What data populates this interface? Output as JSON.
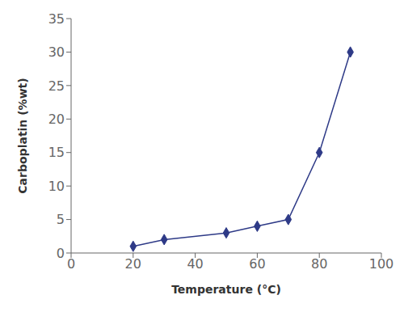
{
  "chart_data": {
    "type": "line",
    "x": [
      20,
      30,
      50,
      60,
      70,
      80,
      90
    ],
    "values": [
      1,
      2,
      3,
      4,
      5,
      15,
      30
    ],
    "color": "#2E3A87",
    "marker": "diamond",
    "xlabel": "Temperature (°C)",
    "ylabel": "Carboplatin (%wt)",
    "xlim": [
      0,
      100
    ],
    "ylim": [
      0,
      35
    ],
    "xticks": [
      0,
      20,
      40,
      60,
      80,
      100
    ],
    "yticks": [
      0,
      5,
      10,
      15,
      20,
      25,
      30,
      35
    ],
    "grid": false
  }
}
